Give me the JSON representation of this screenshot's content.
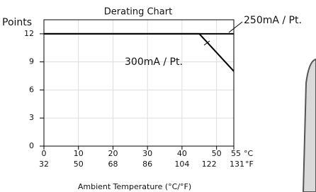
{
  "chart_data": {
    "type": "line",
    "title": "Derating Chart",
    "y_label": "Points",
    "x_label": "Ambient Temperature (°C/°F)",
    "x_unit": "°C",
    "x2_unit": "°F",
    "xlim": [
      0,
      55
    ],
    "xticks": [
      0,
      10,
      20,
      30,
      40,
      50,
      55
    ],
    "x2ticks": [
      {
        "value": 0,
        "label": "32"
      },
      {
        "value": 10,
        "label": "50"
      },
      {
        "value": 20,
        "label": "68"
      },
      {
        "value": 30,
        "label": "86"
      },
      {
        "value": 40,
        "label": "104"
      },
      {
        "value": 50,
        "label": "122"
      },
      {
        "value": 55,
        "label": "131"
      }
    ],
    "ylim": [
      0,
      13.5
    ],
    "yticks": [
      0,
      3,
      6,
      9,
      12
    ],
    "grid": true,
    "series": [
      {
        "name": "250mA / Pt.",
        "color": "#000000",
        "x": [
          0,
          55
        ],
        "values": [
          12,
          12
        ]
      },
      {
        "name": "300mA / Pt.",
        "color": "#000000",
        "x": [
          0,
          45,
          55
        ],
        "values": [
          12,
          12,
          8
        ]
      }
    ]
  }
}
